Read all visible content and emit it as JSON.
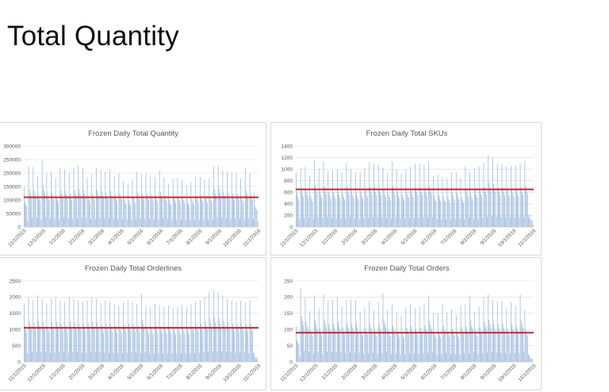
{
  "slide": {
    "title": "Total Quantity"
  },
  "colors": {
    "bars": "#9bb8dc",
    "average_line": "#c0272d",
    "grid": "#d9d9d9"
  },
  "chart_data": [
    {
      "type": "bar",
      "title": "Frozen Daily Total Quantity",
      "ylim": [
        0,
        300000
      ],
      "yticks": [
        "0",
        "50000",
        "100000",
        "150000",
        "200000",
        "250000",
        "300000"
      ],
      "xticks": [
        "11/1/2015",
        "12/1/2015",
        "1/1/2016",
        "2/1/2016",
        "3/1/2016",
        "4/1/2016",
        "5/1/2016",
        "6/1/2016",
        "7/1/2016",
        "8/1/2016",
        "9/1/2016",
        "10/1/2016",
        "11/1/2016"
      ],
      "average": 110000,
      "weekly_peaks": [
        150000,
        225000,
        222000,
        190000,
        245000,
        200000,
        205000,
        180000,
        220000,
        215000,
        200000,
        218000,
        228000,
        220000,
        185000,
        195000,
        220000,
        212000,
        205000,
        215000,
        190000,
        200000,
        170000,
        160000,
        175000,
        205000,
        195000,
        200000,
        190000,
        185000,
        210000,
        185000,
        160000,
        180000,
        180000,
        175000,
        155000,
        165000,
        185000,
        185000,
        175000,
        180000,
        225000,
        230000,
        210000,
        205000,
        200000,
        200000,
        180000,
        220000,
        200000,
        125000
      ]
    },
    {
      "type": "bar",
      "title": "Frozen Daily Total SKUs",
      "ylim": [
        0,
        1400
      ],
      "yticks": [
        "0",
        "200",
        "400",
        "600",
        "800",
        "1000",
        "1200",
        "1400"
      ],
      "xticks": [
        "11/1/2015",
        "12/1/2015",
        "1/1/2016",
        "2/1/2016",
        "3/1/2016",
        "4/1/2016",
        "5/1/2016",
        "6/1/2016",
        "7/1/2016",
        "8/1/2016",
        "9/1/2016",
        "10/1/2016",
        "11/1/2016"
      ],
      "average": 650,
      "weekly_peaks": [
        950,
        1030,
        1040,
        880,
        1160,
        1010,
        1130,
        970,
        980,
        1000,
        940,
        1110,
        1000,
        950,
        960,
        1020,
        1120,
        1100,
        1070,
        1030,
        940,
        1130,
        990,
        920,
        1000,
        1040,
        1090,
        1100,
        1080,
        1140,
        880,
        900,
        860,
        850,
        950,
        950,
        840,
        1050,
        940,
        1020,
        1040,
        1110,
        1240,
        1200,
        1100,
        1090,
        1050,
        1060,
        1050,
        1100,
        1150,
        220
      ]
    },
    {
      "type": "bar",
      "title": "Frozen Daily Total Orderlines",
      "ylim": [
        0,
        2500
      ],
      "yticks": [
        "0",
        "500",
        "1000",
        "1500",
        "2000",
        "2500"
      ],
      "xticks": [
        "11/1/2015",
        "12/1/2015",
        "1/1/2016",
        "2/1/2016",
        "3/1/2016",
        "4/1/2016",
        "5/1/2016",
        "6/1/2016",
        "7/1/2016",
        "8/1/2016",
        "9/1/2016",
        "10/1/2016",
        "11/1/2016"
      ],
      "average": 1050,
      "weekly_peaks": [
        1800,
        2000,
        1900,
        2050,
        1950,
        1800,
        1950,
        2000,
        1900,
        1850,
        2000,
        1950,
        1900,
        1850,
        1900,
        2000,
        1950,
        1800,
        1900,
        1850,
        1800,
        1750,
        1850,
        1900,
        1850,
        1800,
        2100,
        1750,
        1700,
        1800,
        1750,
        1700,
        1750,
        1650,
        1700,
        1750,
        1700,
        1800,
        1850,
        1900,
        2000,
        2150,
        2200,
        2150,
        2050,
        1950,
        1900,
        1850,
        1900,
        1850,
        1900,
        250
      ]
    },
    {
      "type": "bar",
      "title": "Frozen Daily Total Orders",
      "ylim": [
        0,
        250
      ],
      "yticks": [
        "0",
        "50",
        "100",
        "150",
        "200",
        "250"
      ],
      "xticks": [
        "11/1/2015",
        "12/1/2015",
        "1/1/2016",
        "2/1/2016",
        "3/1/2016",
        "4/1/2016",
        "5/1/2016",
        "6/1/2016",
        "7/1/2016",
        "8/1/2016",
        "9/1/2016",
        "10/1/2016",
        "11/1/2016"
      ],
      "average": 90,
      "weekly_peaks": [
        110,
        228,
        200,
        157,
        205,
        165,
        210,
        190,
        192,
        200,
        170,
        192,
        193,
        190,
        155,
        168,
        188,
        160,
        185,
        212,
        160,
        180,
        152,
        143,
        170,
        178,
        165,
        170,
        182,
        205,
        150,
        150,
        180,
        152,
        163,
        145,
        175,
        177,
        205,
        155,
        172,
        200,
        208,
        190,
        186,
        188,
        165,
        185,
        175,
        208,
        160,
        20
      ]
    }
  ]
}
